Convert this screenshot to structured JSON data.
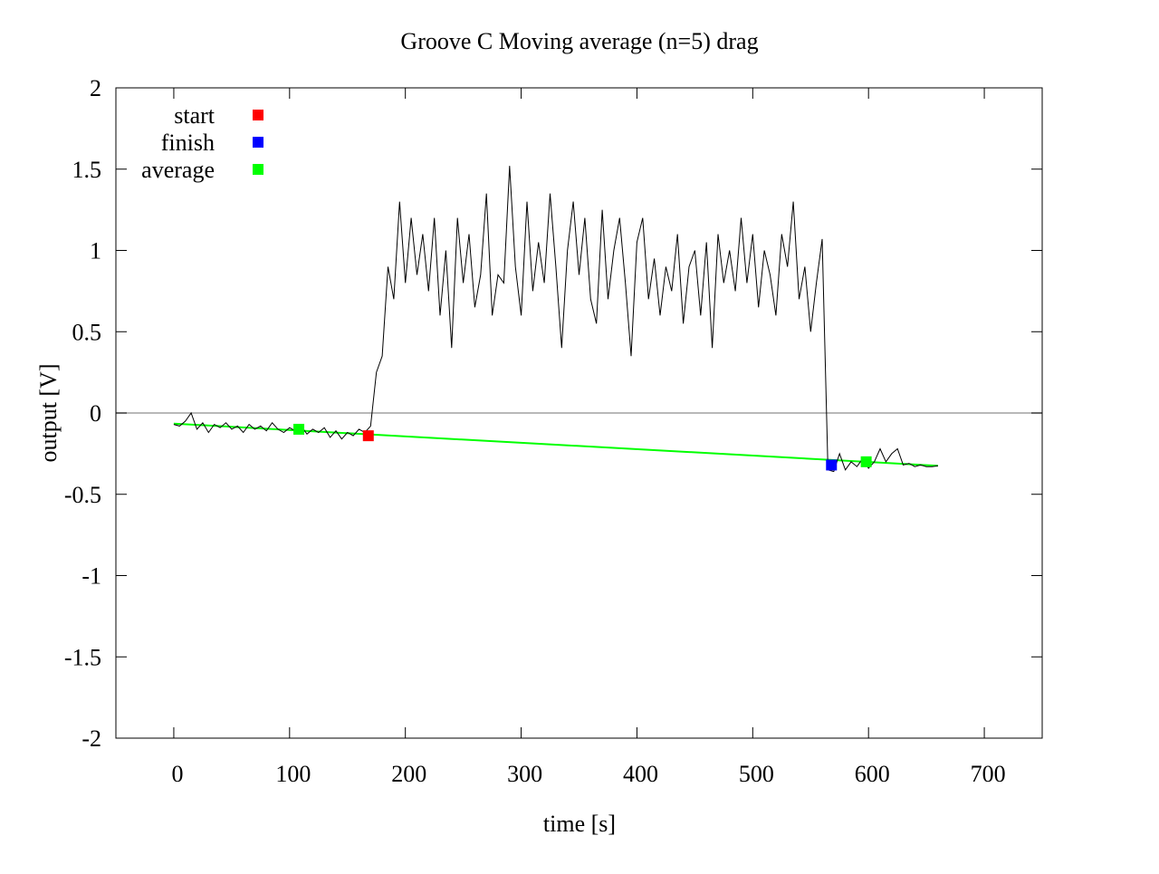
{
  "chart_data": {
    "type": "line",
    "title": "Groove C  Moving average (n=5) drag",
    "x_label": "time [s]",
    "y_label": "output [V]",
    "xlim": [
      -50,
      750
    ],
    "ylim": [
      -2,
      2
    ],
    "xticks": [
      0,
      100,
      200,
      300,
      400,
      500,
      600,
      700
    ],
    "yticks": [
      -2,
      -1.5,
      -1,
      -0.5,
      0,
      0.5,
      1,
      1.5,
      2
    ],
    "zero_line": true,
    "legend": "top-left",
    "trace": {
      "color": "#000000",
      "x": [
        0,
        5,
        10,
        15,
        20,
        25,
        30,
        35,
        40,
        45,
        50,
        55,
        60,
        65,
        70,
        75,
        80,
        85,
        90,
        95,
        100,
        105,
        110,
        115,
        120,
        125,
        130,
        135,
        140,
        145,
        150,
        155,
        160,
        165,
        170,
        175,
        180,
        185,
        190,
        195,
        200,
        205,
        210,
        215,
        220,
        225,
        230,
        235,
        240,
        245,
        250,
        255,
        260,
        265,
        270,
        275,
        280,
        285,
        290,
        295,
        300,
        305,
        310,
        315,
        320,
        325,
        330,
        335,
        340,
        345,
        350,
        355,
        360,
        365,
        370,
        375,
        380,
        385,
        390,
        395,
        400,
        405,
        410,
        415,
        420,
        425,
        430,
        435,
        440,
        445,
        450,
        455,
        460,
        465,
        470,
        475,
        480,
        485,
        490,
        495,
        500,
        505,
        510,
        515,
        520,
        525,
        530,
        535,
        540,
        545,
        550,
        555,
        560,
        565,
        570,
        575,
        580,
        585,
        590,
        595,
        600,
        605,
        610,
        615,
        620,
        625,
        630,
        635,
        640,
        645,
        650,
        655,
        660
      ],
      "values": [
        -0.07,
        -0.08,
        -0.05,
        0.0,
        -0.1,
        -0.06,
        -0.12,
        -0.07,
        -0.09,
        -0.06,
        -0.1,
        -0.08,
        -0.12,
        -0.07,
        -0.1,
        -0.08,
        -0.11,
        -0.06,
        -0.1,
        -0.12,
        -0.09,
        -0.11,
        -0.08,
        -0.13,
        -0.1,
        -0.12,
        -0.09,
        -0.15,
        -0.11,
        -0.16,
        -0.12,
        -0.14,
        -0.1,
        -0.12,
        -0.08,
        0.25,
        0.35,
        0.9,
        0.7,
        1.3,
        0.8,
        1.2,
        0.85,
        1.1,
        0.75,
        1.2,
        0.6,
        1.0,
        0.4,
        1.2,
        0.8,
        1.1,
        0.65,
        0.85,
        1.35,
        0.6,
        0.85,
        0.8,
        1.52,
        0.9,
        0.6,
        1.3,
        0.75,
        1.05,
        0.8,
        1.35,
        0.9,
        0.4,
        1.0,
        1.3,
        0.85,
        1.2,
        0.7,
        0.55,
        1.25,
        0.7,
        1.0,
        1.2,
        0.8,
        0.35,
        1.05,
        1.2,
        0.7,
        0.95,
        0.6,
        0.9,
        0.75,
        1.1,
        0.55,
        0.9,
        1.0,
        0.6,
        1.05,
        0.4,
        1.1,
        0.8,
        1.0,
        0.75,
        1.2,
        0.8,
        1.1,
        0.65,
        1.0,
        0.85,
        0.6,
        1.1,
        0.9,
        1.3,
        0.7,
        0.9,
        0.5,
        0.8,
        1.07,
        -0.35,
        -0.36,
        -0.25,
        -0.35,
        -0.3,
        -0.33,
        -0.28,
        -0.34,
        -0.3,
        -0.22,
        -0.3,
        -0.25,
        -0.22,
        -0.32,
        -0.31,
        -0.33,
        -0.32,
        -0.33,
        -0.33,
        -0.325
      ]
    },
    "fit": {
      "color": "#00ff00",
      "x": [
        0,
        660
      ],
      "values": [
        -0.065,
        -0.325
      ]
    },
    "series": [
      {
        "name": "start",
        "color": "#ff0000",
        "x": [
          168
        ],
        "values": [
          -0.14
        ]
      },
      {
        "name": "finish",
        "color": "#0000ff",
        "x": [
          568
        ],
        "values": [
          -0.32
        ]
      },
      {
        "name": "average",
        "color": "#00ff00",
        "x": [
          108,
          598
        ],
        "values": [
          -0.1,
          -0.3
        ]
      }
    ]
  }
}
